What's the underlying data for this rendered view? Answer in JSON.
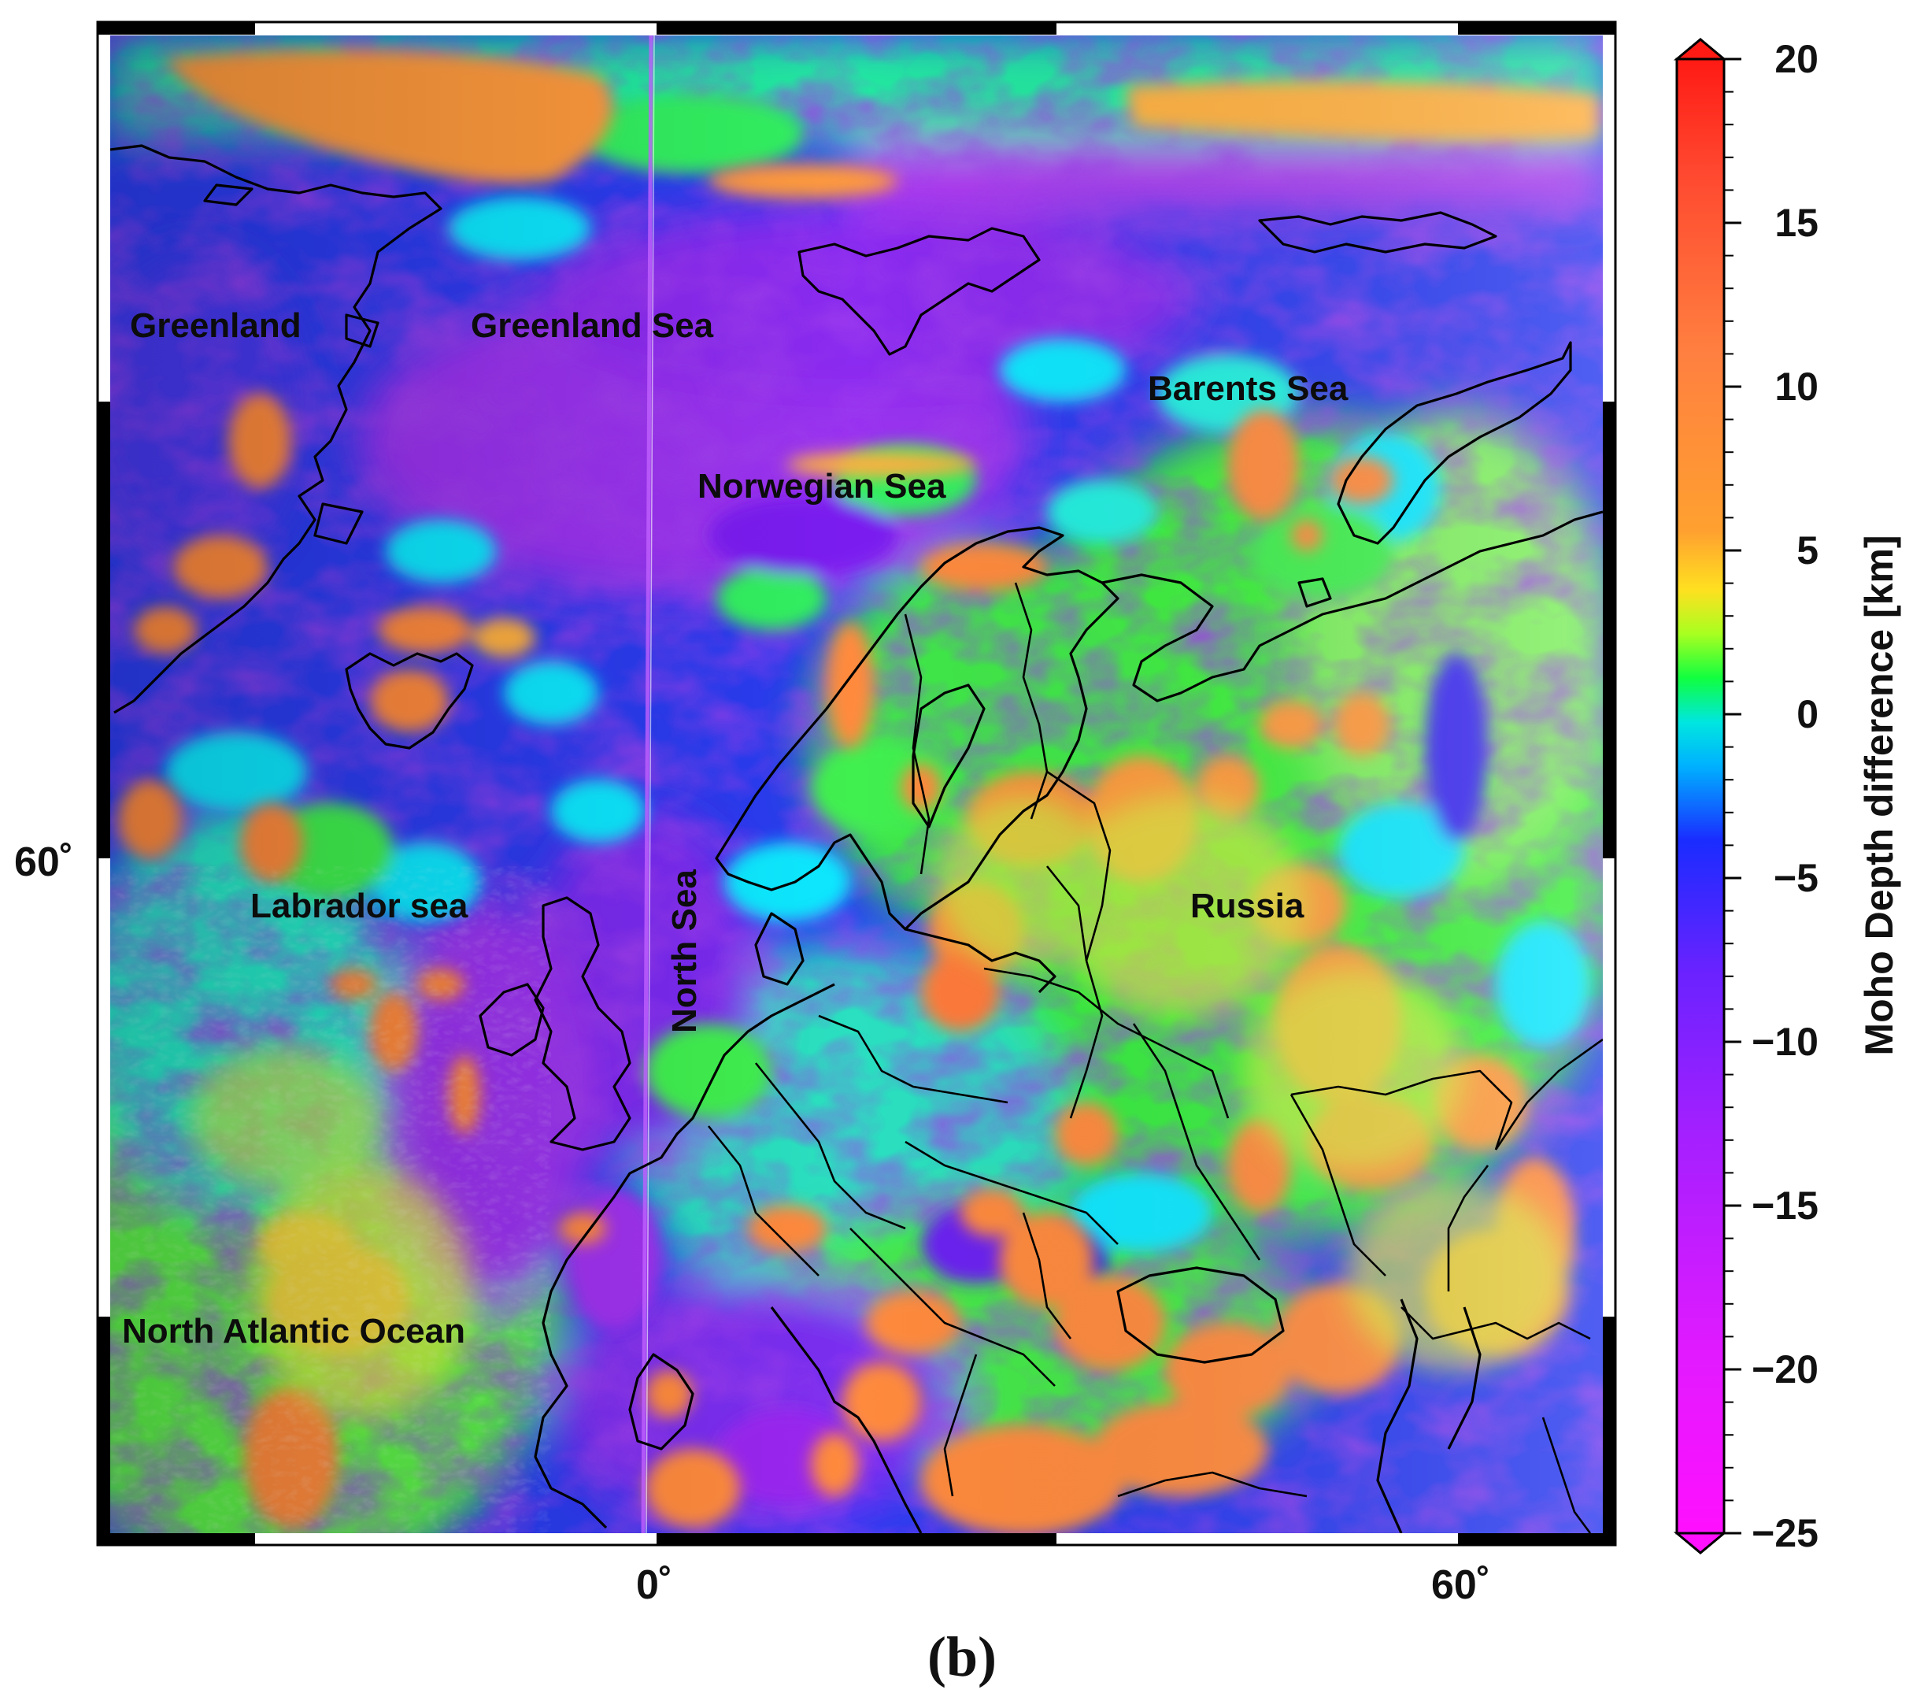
{
  "figure": {
    "panel_label": "(b)"
  },
  "map": {
    "place_labels": {
      "greenland": "Greenland",
      "greenland_sea": "Greenland Sea",
      "barents_sea": "Barents Sea",
      "norwegian_sea": "Norwegian Sea",
      "labrador_sea": "Labrador sea",
      "north_sea": "North Sea",
      "russia": "Russia",
      "north_atlantic": "North Atlantic Ocean"
    },
    "axis": {
      "lon_ticks": [
        "0˚",
        "60˚"
      ],
      "lat_ticks": [
        "60˚"
      ]
    }
  },
  "colorbar": {
    "title": "Moho Depth difference [km]",
    "min": -25,
    "max": 20,
    "tick_labels": [
      "20",
      "15",
      "10",
      "5",
      "0",
      "−5",
      "−10",
      "−15",
      "−20",
      "−25"
    ],
    "colors": [
      "#ff10ff",
      "#b020ff",
      "#7a20ff",
      "#1a2cff",
      "#00dcff",
      "#20ff20",
      "#ffd020",
      "#ff8a3a",
      "#ff2a1a"
    ]
  }
}
